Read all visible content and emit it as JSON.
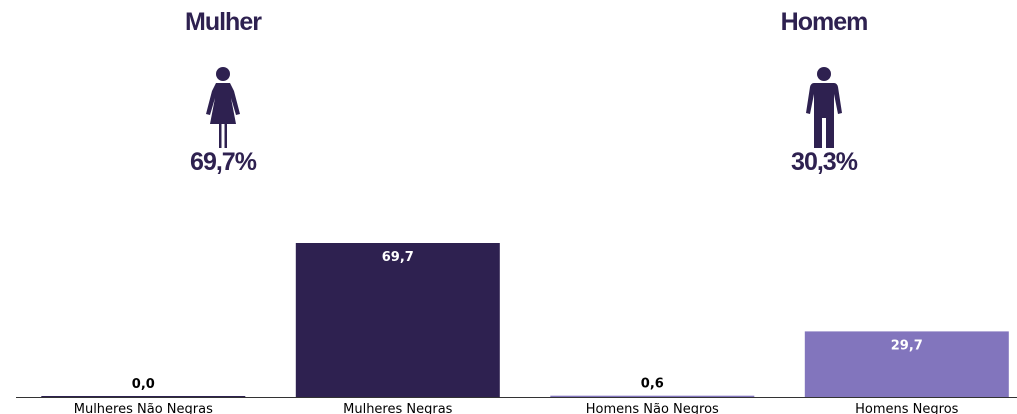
{
  "header": {
    "female": {
      "title": "Mulher",
      "percent": "69,7%",
      "icon": "female-person-icon"
    },
    "male": {
      "title": "Homem",
      "percent": "30,3%",
      "icon": "male-person-icon"
    }
  },
  "colors": {
    "heading": "#2e2150",
    "dark": "#2e2150",
    "light": "#8275bd",
    "axis": "#333333"
  },
  "chart_data": {
    "type": "bar",
    "categories": [
      "Mulheres Não Negras",
      "Mulheres Negras",
      "Homens Não Negros",
      "Homens Negros"
    ],
    "values": [
      0.0,
      69.7,
      0.6,
      29.7
    ],
    "value_labels": [
      "0,0",
      "69,7",
      "0,6",
      "29,7"
    ],
    "bar_colors": [
      "#2e2150",
      "#2e2150",
      "#8275bd",
      "#8275bd"
    ],
    "title": "",
    "xlabel": "",
    "ylabel": "",
    "ylim": [
      0,
      69.7
    ],
    "grid": false,
    "legend": "none"
  }
}
